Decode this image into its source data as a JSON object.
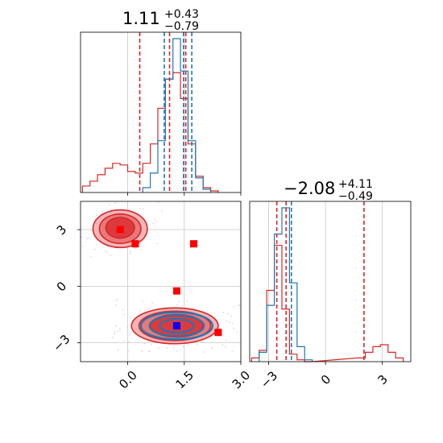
{
  "chart_data": {
    "type": "corner",
    "colors": {
      "red": "#d62728",
      "blue": "#1f77b4",
      "marker_red": "#ff0000",
      "marker_blue": "#0000ff",
      "grid": "#c8c8c8"
    },
    "titles": [
      {
        "param": 0,
        "main": "1.11",
        "sup": "+0.43",
        "sub": "−0.79"
      },
      {
        "param": 1,
        "main": "−2.08",
        "sup": "+4.11",
        "sub": "−0.49"
      }
    ],
    "param0": {
      "range": [
        -1.25,
        3.0
      ],
      "ticks": [
        0.0,
        1.5,
        3.0
      ],
      "tick_labels": [
        "0.0",
        "1.5",
        "3.0"
      ],
      "quantile_lines": {
        "red": [
          0.32,
          1.11,
          1.54
        ],
        "blue": [
          0.97,
          1.48,
          1.7
        ]
      }
    },
    "param1": {
      "range": [
        -4.0,
        4.5
      ],
      "ticks": [
        -3,
        0,
        3
      ],
      "tick_labels": [
        "−3",
        "0",
        "3"
      ],
      "quantile_lines": {
        "red": [
          -2.57,
          -2.08,
          2.03
        ],
        "blue": [
          -1.8
        ]
      }
    },
    "hist0": {
      "red_centers": [
        -1.1,
        -0.9,
        -0.7,
        -0.5,
        -0.3,
        -0.1,
        0.1,
        0.3,
        0.5,
        0.7,
        0.9,
        1.1,
        1.3,
        1.5,
        1.7,
        1.9,
        2.1,
        2.3
      ],
      "red_heights": [
        0.04,
        0.07,
        0.11,
        0.15,
        0.18,
        0.17,
        0.13,
        0.12,
        0.18,
        0.3,
        0.52,
        0.7,
        0.74,
        0.58,
        0.3,
        0.1,
        0.03,
        0.01
      ],
      "blue_centers": [
        0.5,
        0.7,
        0.9,
        1.1,
        1.3,
        1.5,
        1.7,
        1.9,
        2.1
      ],
      "blue_heights": [
        0.03,
        0.12,
        0.32,
        0.7,
        0.95,
        0.75,
        0.32,
        0.09,
        0.02
      ]
    },
    "hist1": {
      "red_centers": [
        -3.7,
        -3.3,
        -2.9,
        -2.5,
        -2.1,
        -1.7,
        -1.3,
        -0.9,
        1.9,
        2.3,
        2.7,
        3.1,
        3.5,
        3.9
      ],
      "red_heights": [
        0.02,
        0.06,
        0.38,
        0.62,
        0.28,
        0.04,
        0.01,
        0.0,
        0.02,
        0.05,
        0.08,
        0.09,
        0.05,
        0.02
      ],
      "blue_centers": [
        -3.3,
        -2.9,
        -2.5,
        -2.1,
        -1.7,
        -1.3,
        -0.9
      ],
      "blue_heights": [
        0.05,
        0.3,
        0.68,
        0.82,
        0.42,
        0.08,
        0.01
      ]
    },
    "contours2d": {
      "red_fill": [
        {
          "cx": -0.2,
          "cy": 3.05,
          "rx": 0.72,
          "ry": 1.0
        },
        {
          "cx": 1.25,
          "cy": -2.1,
          "rx": 1.15,
          "ry": 0.95
        }
      ],
      "red_mid": [
        {
          "cx": -0.2,
          "cy": 3.05,
          "rx": 0.55,
          "ry": 0.78
        },
        {
          "cx": 1.25,
          "cy": -2.1,
          "rx": 0.95,
          "ry": 0.78
        }
      ],
      "red_core": [
        {
          "cx": -0.2,
          "cy": 3.1,
          "rx": 0.38,
          "ry": 0.55
        },
        {
          "cx": 1.3,
          "cy": -2.1,
          "rx": 0.7,
          "ry": 0.6
        }
      ],
      "blue": [
        {
          "cx": 1.3,
          "cy": -2.1,
          "rx": 0.95,
          "ry": 0.72
        },
        {
          "cx": 1.3,
          "cy": -2.1,
          "rx": 0.72,
          "ry": 0.55
        },
        {
          "cx": 1.3,
          "cy": -2.1,
          "rx": 0.45,
          "ry": 0.35
        }
      ]
    },
    "markers": {
      "red": [
        {
          "x": -0.2,
          "y": 3.0
        },
        {
          "x": 0.2,
          "y": 2.25
        },
        {
          "x": 1.75,
          "y": 2.25
        },
        {
          "x": 1.3,
          "y": -0.25
        },
        {
          "x": 2.4,
          "y": -2.45
        }
      ],
      "blue": [
        {
          "x": 1.3,
          "y": -2.1
        }
      ]
    }
  }
}
